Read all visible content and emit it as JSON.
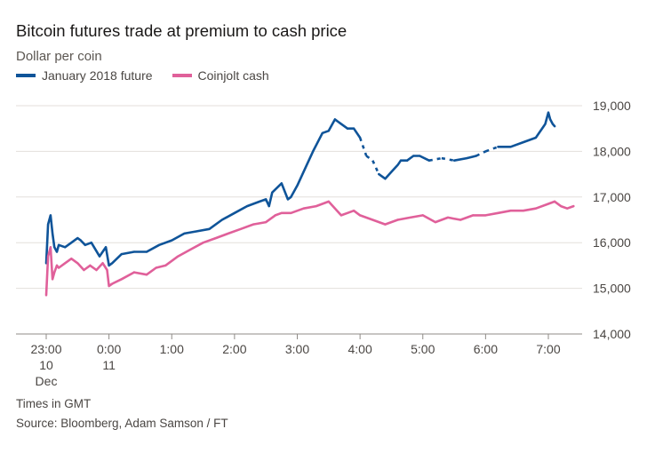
{
  "chart_data": {
    "type": "line",
    "title": "Bitcoin futures trade at premium to cash price",
    "ylabel": "Dollar per coin",
    "ylim": [
      14000,
      19000
    ],
    "yticks": [
      {
        "value": 14000,
        "label": "14,000"
      },
      {
        "value": 15000,
        "label": "15,000"
      },
      {
        "value": 16000,
        "label": "16,000"
      },
      {
        "value": 17000,
        "label": "17,000"
      },
      {
        "value": 18000,
        "label": "18,000"
      },
      {
        "value": 19000,
        "label": "19,000"
      }
    ],
    "xlim": [
      -0.35,
      8.45
    ],
    "xticks": [
      {
        "value": 0,
        "lines": [
          "23:00",
          "10",
          "Dec"
        ]
      },
      {
        "value": 1,
        "lines": [
          "0:00",
          "11"
        ]
      },
      {
        "value": 2,
        "lines": [
          "1:00"
        ]
      },
      {
        "value": 3,
        "lines": [
          "2:00"
        ]
      },
      {
        "value": 4,
        "lines": [
          "3:00"
        ]
      },
      {
        "value": 5,
        "lines": [
          "4:00"
        ]
      },
      {
        "value": 6,
        "lines": [
          "5:00"
        ]
      },
      {
        "value": 7,
        "lines": [
          "6:00"
        ]
      },
      {
        "value": 8,
        "lines": [
          "7:00"
        ]
      }
    ],
    "grid": true,
    "legend_position": "top-left",
    "series": [
      {
        "name": "January 2018 future",
        "color": "#0f5499",
        "x": [
          0.0,
          0.03,
          0.07,
          0.1,
          0.13,
          0.17,
          0.2,
          0.3,
          0.4,
          0.5,
          0.55,
          0.62,
          0.72,
          0.85,
          0.95,
          1.0,
          1.05,
          1.2,
          1.4,
          1.6,
          1.8,
          2.0,
          2.2,
          2.4,
          2.6,
          2.8,
          3.0,
          3.2,
          3.4,
          3.5,
          3.55,
          3.6,
          3.75,
          3.85,
          3.9,
          4.0,
          4.15,
          4.25,
          4.4,
          4.5,
          4.6,
          4.7,
          4.8,
          4.9,
          5.0,
          5.1,
          5.2,
          5.3,
          5.4,
          5.5,
          5.6,
          5.65,
          5.75,
          5.85,
          5.95,
          6.1,
          6.3,
          6.5,
          6.7,
          6.85,
          7.0,
          7.2,
          7.4,
          7.6,
          7.8,
          7.95,
          8.0,
          8.03,
          8.07,
          8.1
        ],
        "y": [
          15550,
          16400,
          16600,
          16200,
          15900,
          15800,
          15950,
          15900,
          16000,
          16100,
          16050,
          15950,
          16000,
          15700,
          15900,
          15500,
          15550,
          15750,
          15800,
          15800,
          15950,
          16050,
          16200,
          16250,
          16300,
          16500,
          16650,
          16800,
          16900,
          16950,
          16800,
          17100,
          17300,
          16950,
          17000,
          17250,
          17700,
          18000,
          18400,
          18450,
          18700,
          18600,
          18500,
          18500,
          18300,
          17900,
          17800,
          17500,
          17400,
          17550,
          17700,
          17800,
          17800,
          17900,
          17900,
          17800,
          17850,
          17800,
          17850,
          17900,
          18000,
          18100,
          18100,
          18200,
          18300,
          18600,
          18850,
          18700,
          18600,
          18550
        ]
      },
      {
        "name": "Coinjolt cash",
        "color": "#e0609a",
        "x": [
          0.0,
          0.03,
          0.07,
          0.1,
          0.13,
          0.17,
          0.2,
          0.3,
          0.4,
          0.5,
          0.6,
          0.7,
          0.8,
          0.9,
          0.97,
          1.0,
          1.05,
          1.2,
          1.4,
          1.6,
          1.75,
          1.9,
          2.1,
          2.3,
          2.5,
          2.7,
          2.9,
          3.1,
          3.3,
          3.5,
          3.65,
          3.75,
          3.9,
          4.1,
          4.3,
          4.5,
          4.7,
          4.8,
          4.9,
          5.0,
          5.2,
          5.4,
          5.6,
          5.8,
          6.0,
          6.2,
          6.4,
          6.6,
          6.8,
          7.0,
          7.2,
          7.4,
          7.6,
          7.8,
          8.0,
          8.1,
          8.2,
          8.3,
          8.4
        ],
        "y": [
          14850,
          15700,
          15900,
          15200,
          15350,
          15500,
          15450,
          15550,
          15650,
          15550,
          15400,
          15500,
          15400,
          15550,
          15400,
          15050,
          15100,
          15200,
          15350,
          15300,
          15450,
          15500,
          15700,
          15850,
          16000,
          16100,
          16200,
          16300,
          16400,
          16450,
          16600,
          16650,
          16650,
          16750,
          16800,
          16900,
          16600,
          16650,
          16700,
          16600,
          16500,
          16400,
          16500,
          16550,
          16600,
          16450,
          16550,
          16500,
          16600,
          16600,
          16650,
          16700,
          16700,
          16750,
          16850,
          16900,
          16800,
          16750,
          16800
        ]
      }
    ],
    "dashed_segments": [
      {
        "series": 0,
        "x_from": 5.05,
        "x_to": 5.3
      },
      {
        "series": 0,
        "x_from": 6.1,
        "x_to": 6.5
      },
      {
        "series": 0,
        "x_from": 6.85,
        "x_to": 7.2
      }
    ]
  },
  "notes": {
    "time_zone": "Times in GMT",
    "source": "Source: Bloomberg, Adam Samson / FT"
  }
}
